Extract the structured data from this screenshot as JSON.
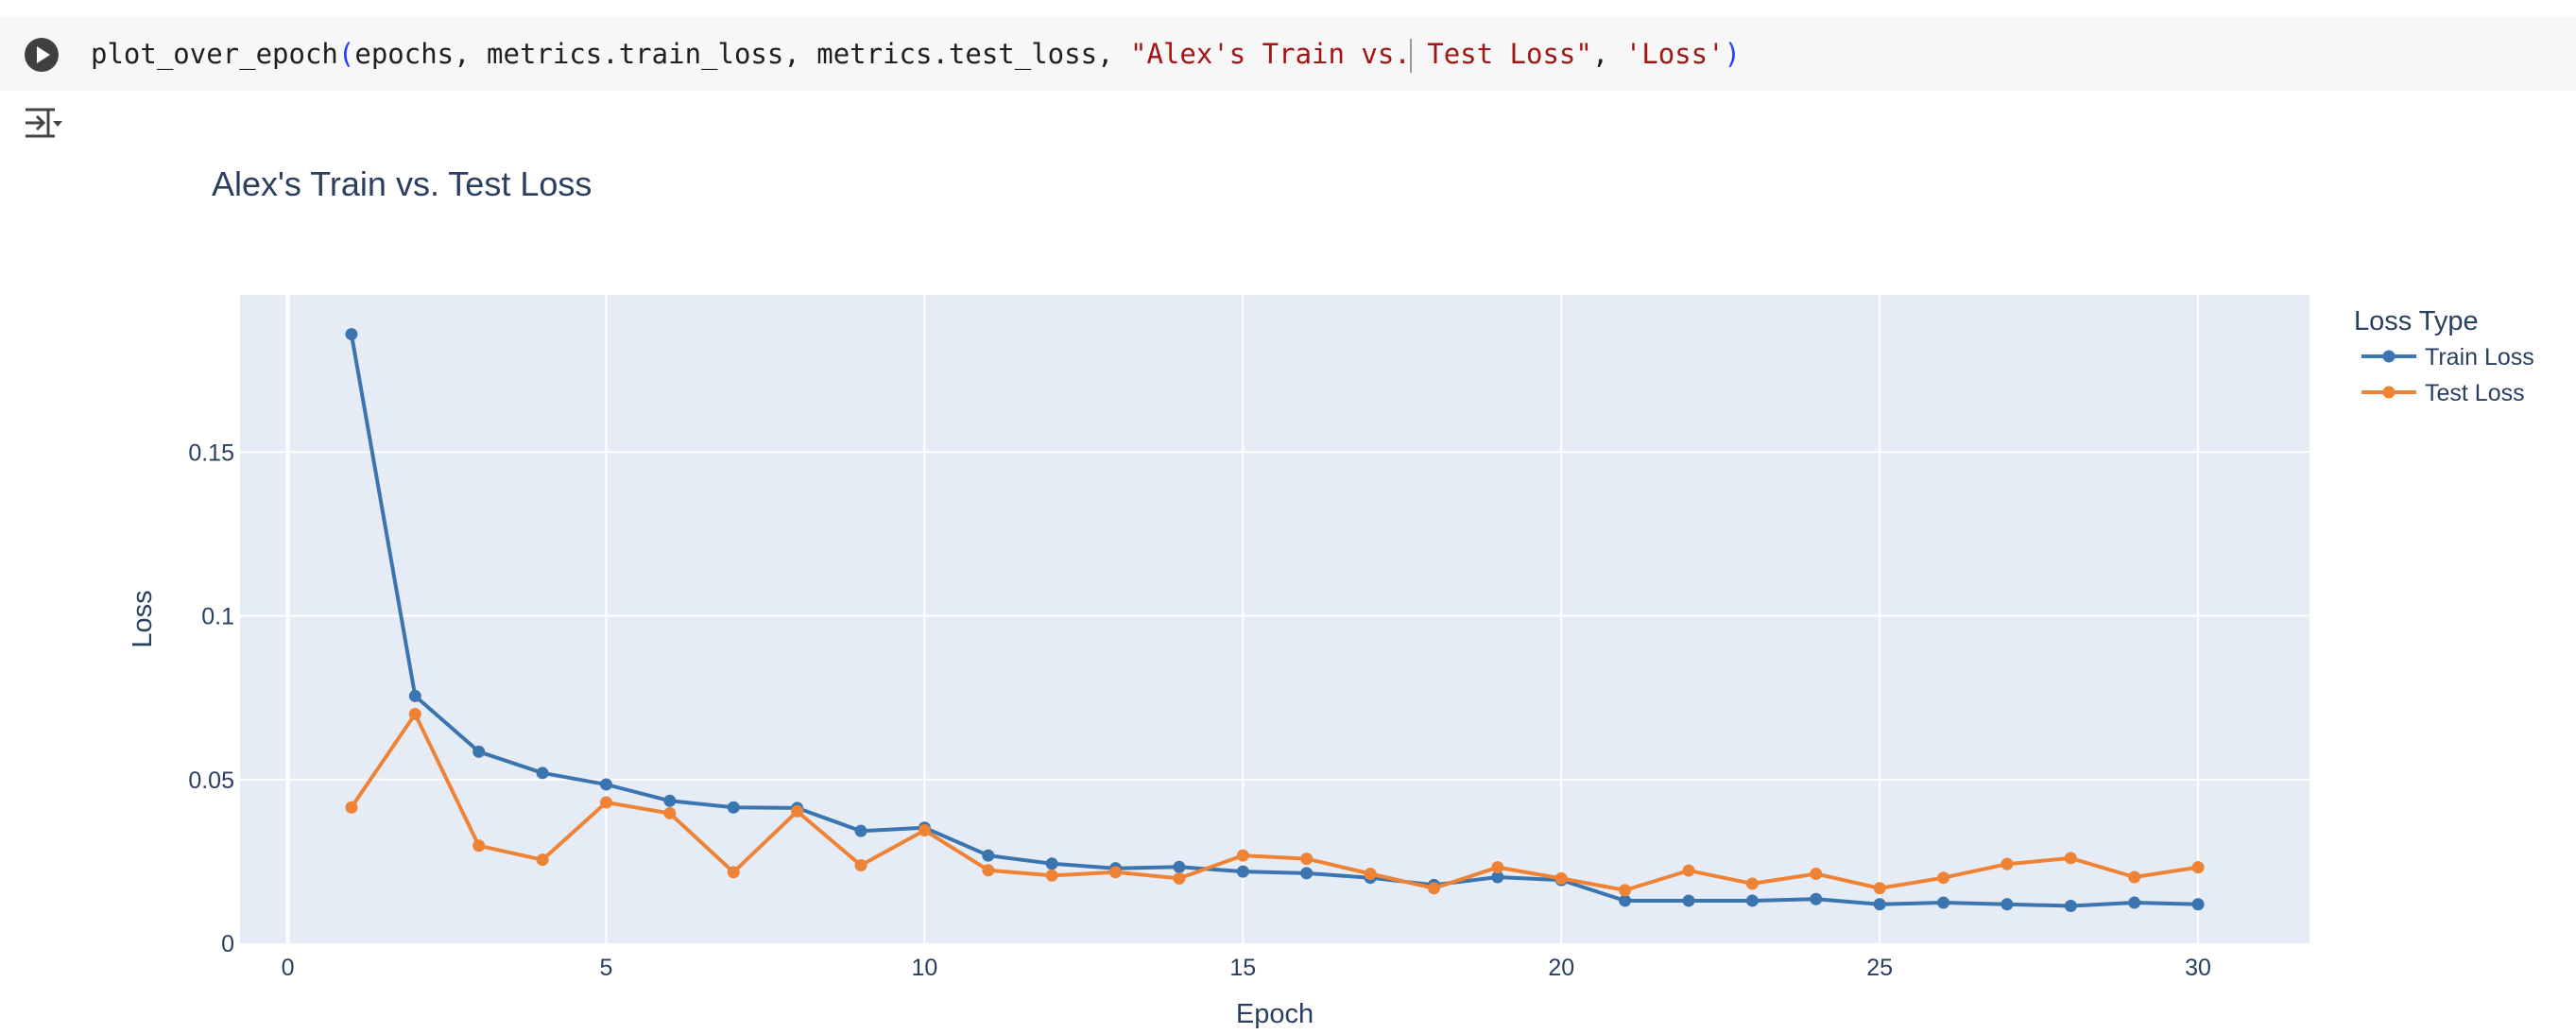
{
  "code_cell": {
    "function_name": "plot_over_epoch",
    "args": "epochs, metrics.train_loss, metrics.test_loss, ",
    "string_part1": "\"Alex's Train vs.",
    "string_part2": " Test Loss\"",
    "separator": ", ",
    "ylabel_arg": "'Loss'",
    "open_paren": "(",
    "close_paren": ")"
  },
  "icons": {
    "run": "play-circle-icon",
    "output_toggle": "output-collapse-icon"
  },
  "chart_data": {
    "type": "line",
    "title": "Alex's Train vs. Test Loss",
    "xlabel": "Epoch",
    "ylabel": "Loss",
    "xlim": [
      -0.75,
      31.75
    ],
    "ylim": [
      0,
      0.198
    ],
    "x_ticks": [
      0,
      5,
      10,
      15,
      20,
      25,
      30
    ],
    "y_ticks": [
      0,
      0.05,
      0.1,
      0.15
    ],
    "y_tick_labels": [
      "0",
      "0.05",
      "0.1",
      "0.15"
    ],
    "grid": true,
    "legend_title": "Loss Type",
    "legend_position": "right",
    "x": [
      1,
      2,
      3,
      4,
      5,
      6,
      7,
      8,
      9,
      10,
      11,
      12,
      13,
      14,
      15,
      16,
      17,
      18,
      19,
      20,
      21,
      22,
      23,
      24,
      25,
      26,
      27,
      28,
      29,
      30
    ],
    "series": [
      {
        "name": "Train Loss",
        "color": "#3a75b0",
        "values": [
          0.186,
          0.0755,
          0.0585,
          0.052,
          0.0485,
          0.0435,
          0.0415,
          0.0413,
          0.0343,
          0.0353,
          0.0268,
          0.0243,
          0.0229,
          0.0233,
          0.0219,
          0.0214,
          0.02,
          0.0178,
          0.0202,
          0.0193,
          0.013,
          0.013,
          0.013,
          0.0135,
          0.0119,
          0.0124,
          0.0119,
          0.0114,
          0.0124,
          0.0119
        ]
      },
      {
        "name": "Test Loss",
        "color": "#ef8335",
        "values": [
          0.0415,
          0.07,
          0.0298,
          0.0255,
          0.043,
          0.0397,
          0.0217,
          0.0403,
          0.0238,
          0.0345,
          0.0223,
          0.0207,
          0.0217,
          0.0198,
          0.0268,
          0.0258,
          0.0212,
          0.0168,
          0.0232,
          0.0198,
          0.0162,
          0.0222,
          0.0182,
          0.0212,
          0.0168,
          0.02,
          0.0242,
          0.026,
          0.0202,
          0.0232
        ]
      }
    ]
  }
}
